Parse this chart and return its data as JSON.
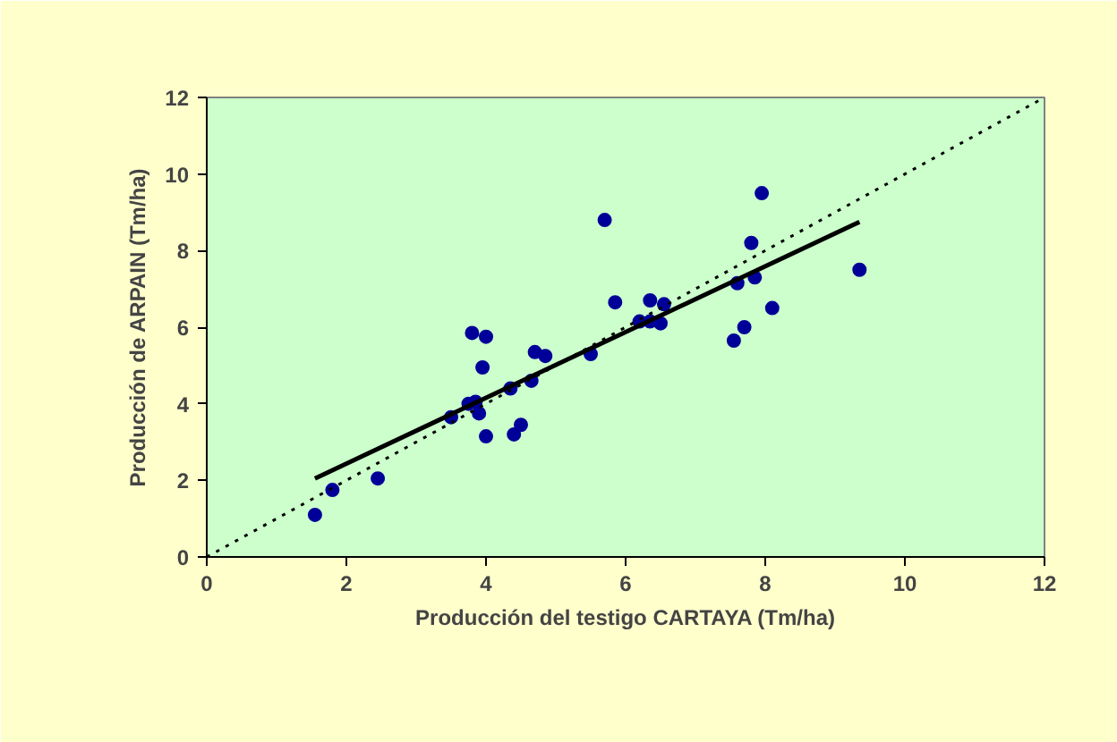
{
  "chart_data": {
    "type": "scatter",
    "xlabel": "Producción del testigo CARTAYA (Tm/ha)",
    "ylabel": "Producción de ARPAIN (Tm/ha)",
    "xlim": [
      0,
      12
    ],
    "ylim": [
      0,
      12
    ],
    "xticks": [
      0,
      2,
      4,
      6,
      8,
      10,
      12
    ],
    "yticks": [
      0,
      2,
      4,
      6,
      8,
      10,
      12
    ],
    "grid": false,
    "series": [
      {
        "marker": "circle",
        "color": "#000099",
        "x": [
          1.55,
          1.8,
          2.45,
          3.5,
          3.75,
          3.85,
          3.8,
          3.9,
          3.95,
          4.0,
          4.0,
          4.35,
          4.4,
          4.5,
          4.65,
          4.7,
          4.85,
          5.5,
          5.7,
          5.85,
          6.2,
          6.35,
          6.35,
          6.5,
          6.55,
          7.55,
          7.6,
          7.7,
          7.8,
          7.85,
          7.95,
          8.1,
          9.35
        ],
        "values": [
          1.1,
          1.75,
          2.05,
          3.65,
          4.0,
          4.05,
          5.85,
          3.75,
          4.95,
          5.75,
          3.15,
          4.4,
          3.2,
          3.45,
          4.6,
          5.35,
          5.25,
          5.3,
          8.8,
          6.65,
          6.15,
          6.7,
          6.15,
          6.1,
          6.6,
          5.65,
          7.15,
          6.0,
          8.2,
          7.3,
          9.5,
          6.5,
          7.5
        ]
      },
      {
        "type": "line",
        "color": "#000000",
        "line_style": "solid",
        "x": [
          1.55,
          9.35
        ],
        "values": [
          2.05,
          8.75
        ]
      },
      {
        "type": "line",
        "color": "#000000",
        "line_style": "dotted",
        "x": [
          0,
          12
        ],
        "values": [
          0,
          12
        ]
      }
    ]
  }
}
